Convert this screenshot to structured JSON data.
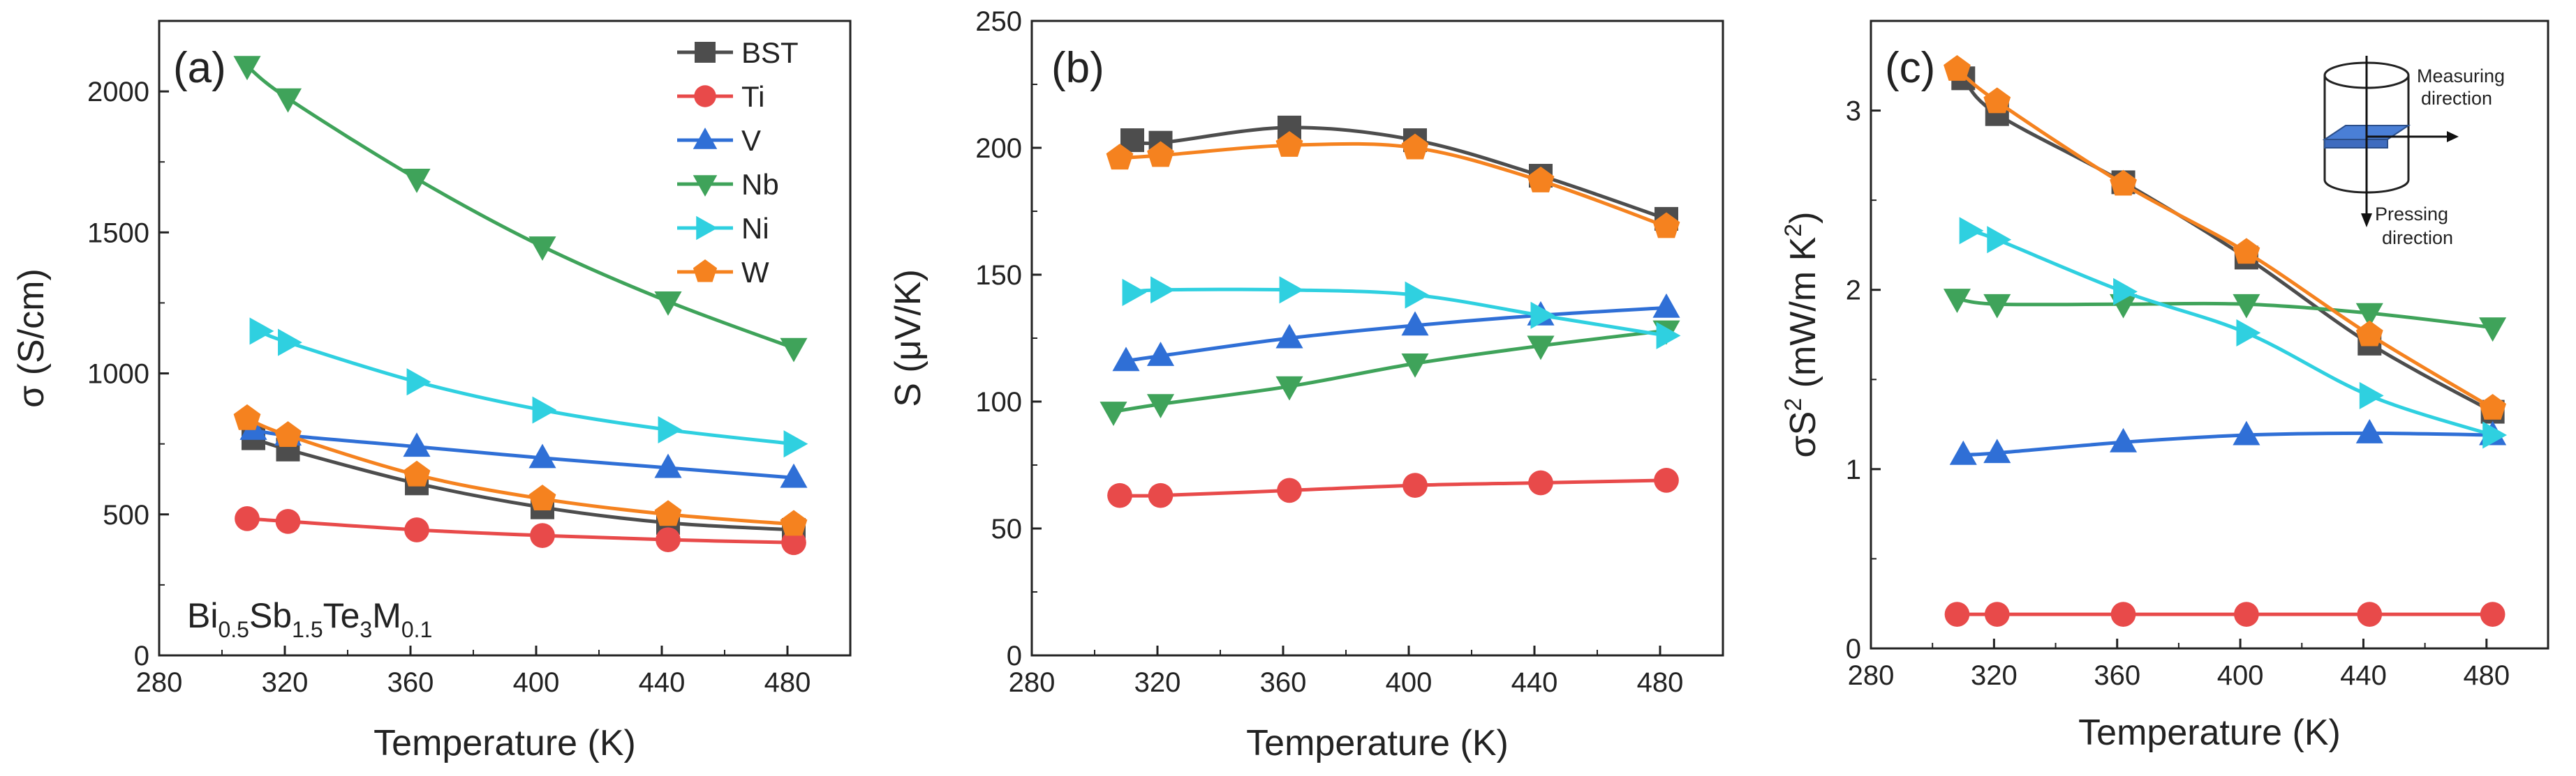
{
  "figure": {
    "formula": {
      "base": "Bi",
      "s1": "0.5",
      "b2": "Sb",
      "s2": "1.5",
      "b3": "Te",
      "s3": "3",
      "b4": "M",
      "s4": "0.1"
    },
    "inset": {
      "measuring_line1": "Measuring",
      "measuring_line2": "direction",
      "pressing_line1": "Pressing",
      "pressing_line2": "direction"
    }
  },
  "series_styles": [
    {
      "name": "BST",
      "color": "#4d4d4d",
      "marker": "square"
    },
    {
      "name": "Ti",
      "color": "#e84a4a",
      "marker": "circle"
    },
    {
      "name": "V",
      "color": "#2f6fd6",
      "marker": "triangle-up"
    },
    {
      "name": "Nb",
      "color": "#3fa35a",
      "marker": "triangle-down"
    },
    {
      "name": "Ni",
      "color": "#2fd0e0",
      "marker": "triangle-right"
    },
    {
      "name": "W",
      "color": "#f5821f",
      "marker": "pentagon"
    }
  ],
  "chart_data": [
    {
      "type": "line",
      "panel_label": "(a)",
      "title": "",
      "xlabel": "Temperature (K)",
      "ylabel": "σ (S/cm)",
      "xlim": [
        280,
        500
      ],
      "ylim": [
        0,
        2250
      ],
      "xticks": [
        280,
        320,
        360,
        400,
        440,
        480
      ],
      "yticks": [
        0,
        500,
        1000,
        1500,
        2000
      ],
      "legend": "top-right",
      "series": [
        {
          "name": "BST",
          "points": [
            [
              310,
              770
            ],
            [
              321,
              730
            ],
            [
              362,
              610
            ],
            [
              402,
              525
            ],
            [
              442,
              470
            ],
            [
              482,
              445
            ]
          ]
        },
        {
          "name": "Ti",
          "points": [
            [
              308,
              485
            ],
            [
              321,
              475
            ],
            [
              362,
              445
            ],
            [
              402,
              425
            ],
            [
              442,
              410
            ],
            [
              482,
              400
            ]
          ]
        },
        {
          "name": "V",
          "points": [
            [
              310,
              800
            ],
            [
              321,
              780
            ],
            [
              362,
              740
            ],
            [
              402,
              700
            ],
            [
              442,
              665
            ],
            [
              482,
              630
            ]
          ]
        },
        {
          "name": "Nb",
          "points": [
            [
              308,
              2090
            ],
            [
              321,
              1975
            ],
            [
              362,
              1690
            ],
            [
              402,
              1450
            ],
            [
              442,
              1255
            ],
            [
              482,
              1090
            ]
          ]
        },
        {
          "name": "Ni",
          "points": [
            [
              312,
              1150
            ],
            [
              321,
              1110
            ],
            [
              362,
              970
            ],
            [
              402,
              870
            ],
            [
              442,
              800
            ],
            [
              482,
              750
            ]
          ]
        },
        {
          "name": "W",
          "points": [
            [
              308,
              840
            ],
            [
              321,
              780
            ],
            [
              362,
              640
            ],
            [
              402,
              555
            ],
            [
              442,
              500
            ],
            [
              482,
              465
            ]
          ]
        }
      ]
    },
    {
      "type": "line",
      "panel_label": "(b)",
      "title": "",
      "xlabel": "Temperature (K)",
      "ylabel": "S (μV/K)",
      "xlim": [
        280,
        500
      ],
      "ylim": [
        0,
        250
      ],
      "xticks": [
        280,
        320,
        360,
        400,
        440,
        480
      ],
      "yticks": [
        0,
        50,
        100,
        150,
        200,
        250
      ],
      "series": [
        {
          "name": "BST",
          "points": [
            [
              312,
              203
            ],
            [
              321,
              202
            ],
            [
              362,
              208
            ],
            [
              402,
              203
            ],
            [
              442,
              189
            ],
            [
              482,
              172
            ]
          ]
        },
        {
          "name": "Ti",
          "points": [
            [
              308,
              63
            ],
            [
              321,
              63
            ],
            [
              362,
              65
            ],
            [
              402,
              67
            ],
            [
              442,
              68
            ],
            [
              482,
              69
            ]
          ]
        },
        {
          "name": "V",
          "points": [
            [
              310,
              116
            ],
            [
              321,
              118
            ],
            [
              362,
              125
            ],
            [
              402,
              130
            ],
            [
              442,
              134
            ],
            [
              482,
              137
            ]
          ]
        },
        {
          "name": "Nb",
          "points": [
            [
              306,
              96
            ],
            [
              321,
              99
            ],
            [
              362,
              106
            ],
            [
              402,
              115
            ],
            [
              442,
              122
            ],
            [
              482,
              128
            ]
          ]
        },
        {
          "name": "Ni",
          "points": [
            [
              312,
              143
            ],
            [
              321,
              144
            ],
            [
              362,
              144
            ],
            [
              402,
              142
            ],
            [
              442,
              134
            ],
            [
              482,
              126
            ]
          ]
        },
        {
          "name": "W",
          "points": [
            [
              308,
              196
            ],
            [
              321,
              197
            ],
            [
              362,
              201
            ],
            [
              402,
              200
            ],
            [
              442,
              187
            ],
            [
              482,
              169
            ]
          ]
        }
      ]
    },
    {
      "type": "line",
      "panel_label": "(c)",
      "title": "",
      "xlabel": "Temperature (K)",
      "ylabel": "σS² (mW/m K²)",
      "ylabel_parts": {
        "a": "σS",
        "sup1": "2",
        "b": " (mW/m K",
        "sup2": "2",
        "c": ")"
      },
      "xlim": [
        280,
        500
      ],
      "ylim": [
        0,
        3.5
      ],
      "xticks": [
        280,
        320,
        360,
        400,
        440,
        480
      ],
      "yticks": [
        0,
        1,
        2,
        3
      ],
      "series": [
        {
          "name": "BST",
          "points": [
            [
              310,
              3.18
            ],
            [
              321,
              2.98
            ],
            [
              362,
              2.6
            ],
            [
              402,
              2.18
            ],
            [
              442,
              1.7
            ],
            [
              482,
              1.32
            ]
          ]
        },
        {
          "name": "Ti",
          "points": [
            [
              308,
              0.19
            ],
            [
              321,
              0.19
            ],
            [
              362,
              0.19
            ],
            [
              402,
              0.19
            ],
            [
              442,
              0.19
            ],
            [
              482,
              0.19
            ]
          ]
        },
        {
          "name": "V",
          "points": [
            [
              310,
              1.08
            ],
            [
              321,
              1.09
            ],
            [
              362,
              1.15
            ],
            [
              402,
              1.19
            ],
            [
              442,
              1.2
            ],
            [
              482,
              1.19
            ]
          ]
        },
        {
          "name": "Nb",
          "points": [
            [
              308,
              1.95
            ],
            [
              321,
              1.92
            ],
            [
              362,
              1.92
            ],
            [
              402,
              1.92
            ],
            [
              442,
              1.87
            ],
            [
              482,
              1.79
            ]
          ]
        },
        {
          "name": "Ni",
          "points": [
            [
              312,
              2.33
            ],
            [
              321,
              2.28
            ],
            [
              362,
              1.99
            ],
            [
              402,
              1.76
            ],
            [
              442,
              1.41
            ],
            [
              482,
              1.19
            ]
          ]
        },
        {
          "name": "W",
          "points": [
            [
              308,
              3.23
            ],
            [
              321,
              3.05
            ],
            [
              362,
              2.59
            ],
            [
              402,
              2.21
            ],
            [
              442,
              1.75
            ],
            [
              482,
              1.34
            ]
          ]
        }
      ]
    }
  ]
}
